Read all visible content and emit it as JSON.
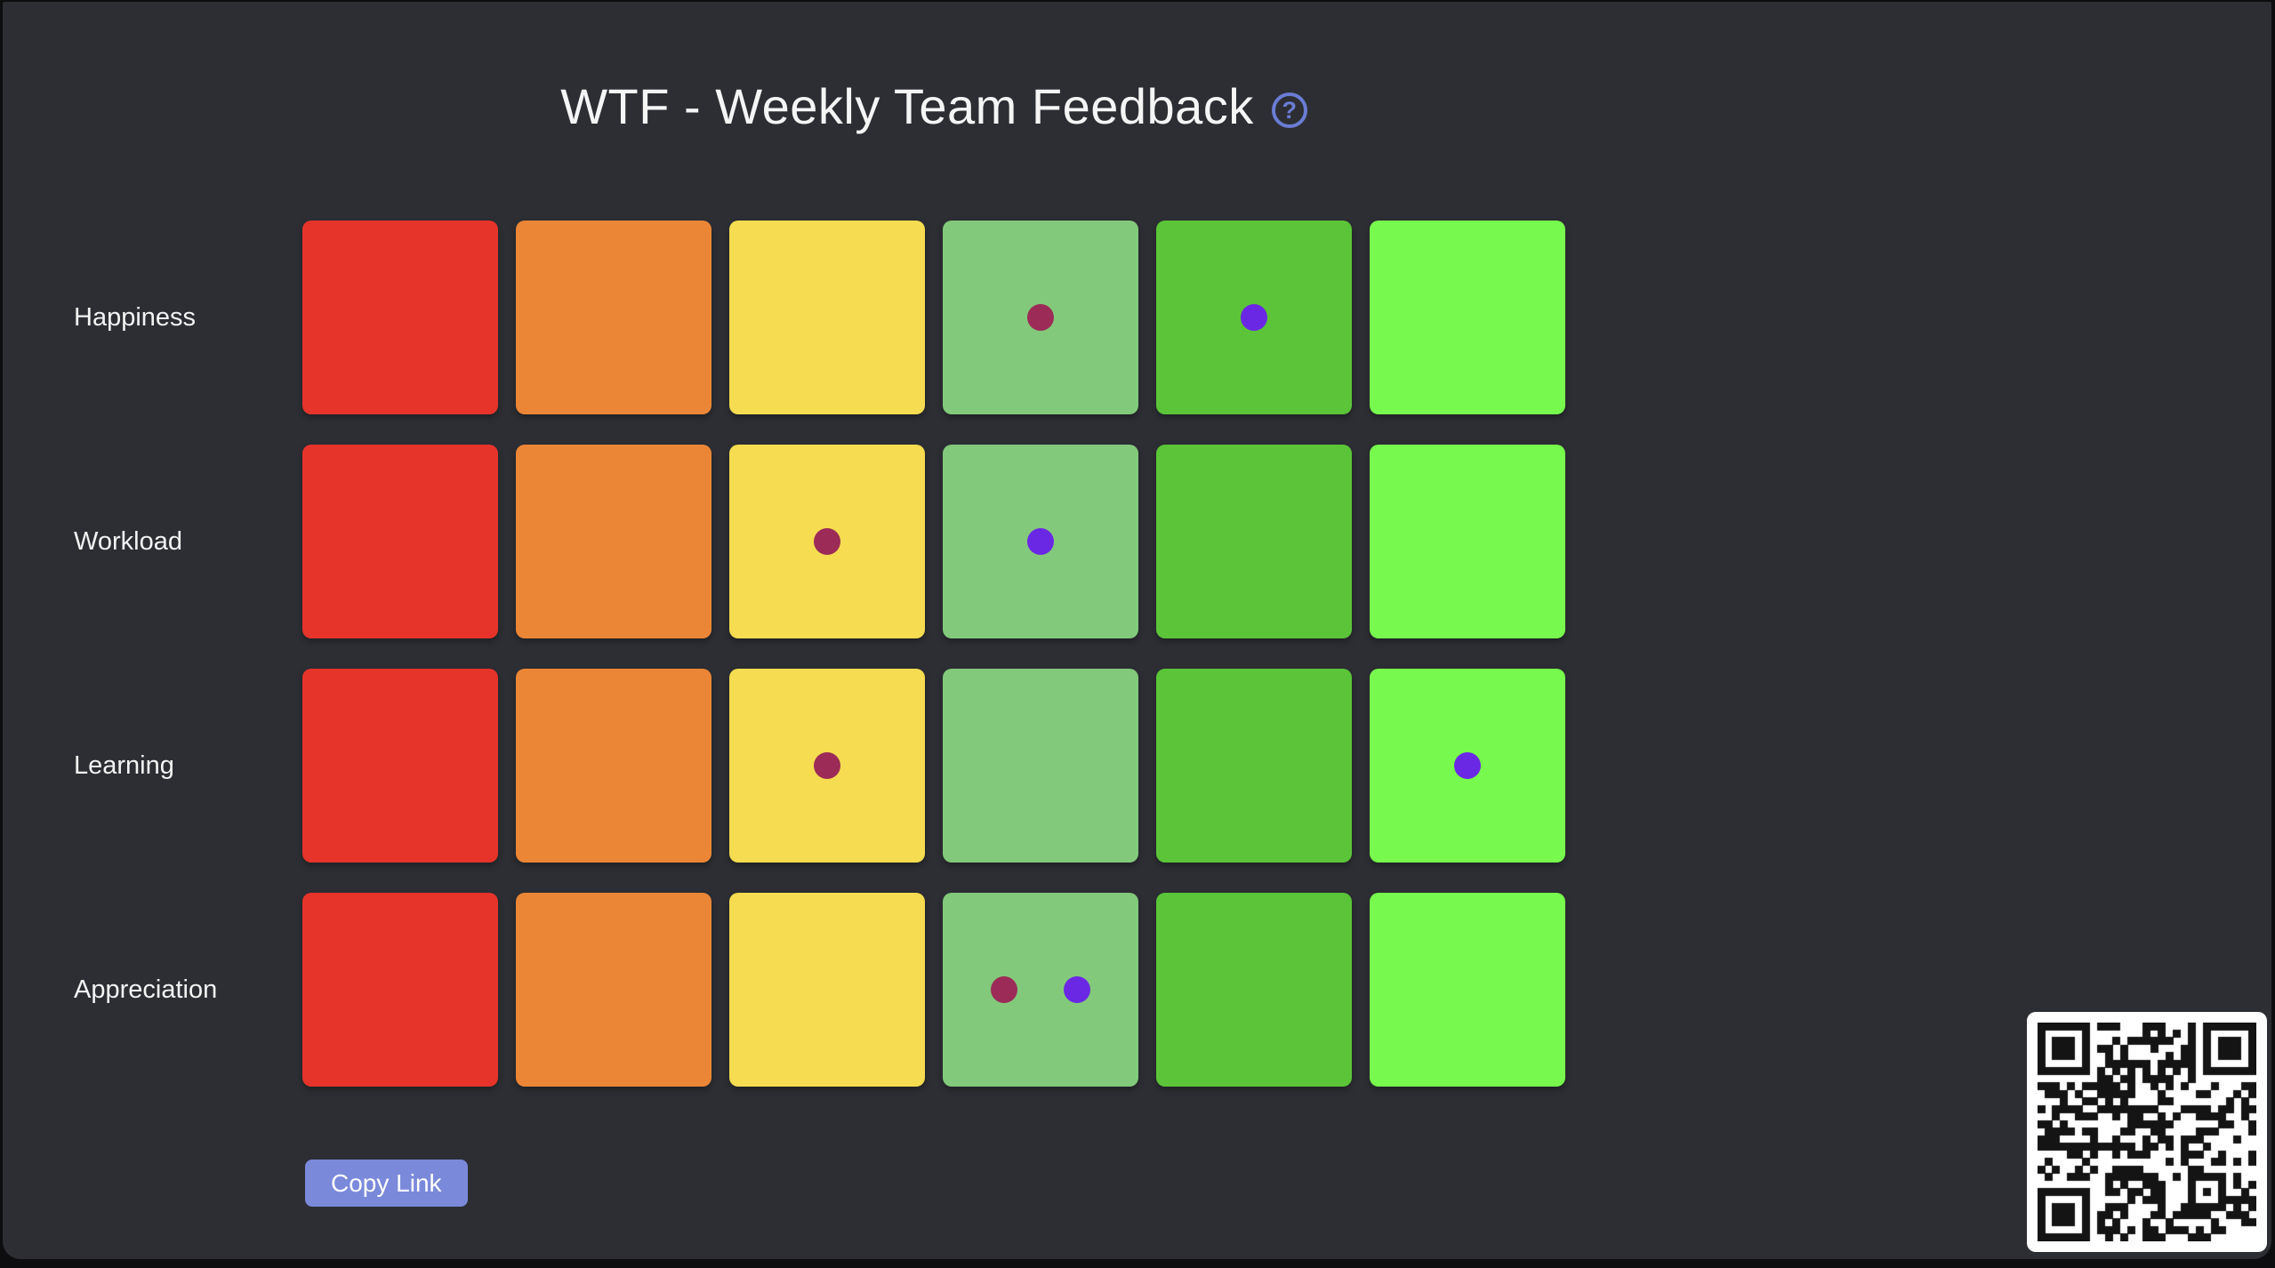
{
  "page": {
    "title": "WTF - Weekly Team Feedback",
    "help_glyph": "?"
  },
  "colors": {
    "panel_background": "#2c2e33",
    "outer_background": "#0d0d0f",
    "accent": "#7a89da",
    "help_icon": "#6b7cd4",
    "vote_maroon": "#9c2b58",
    "vote_purple": "#6b28e4",
    "scale": [
      "#e6342b",
      "#eb8636",
      "#f5dc50",
      "#83c97b",
      "#5bc438",
      "#77f94d"
    ]
  },
  "board": {
    "columns": 6,
    "rows": [
      {
        "label": "Happiness",
        "votes": [
          {
            "col": 3,
            "color": "maroon"
          },
          {
            "col": 4,
            "color": "purple"
          }
        ]
      },
      {
        "label": "Workload",
        "votes": [
          {
            "col": 2,
            "color": "maroon"
          },
          {
            "col": 3,
            "color": "purple"
          }
        ]
      },
      {
        "label": "Learning",
        "votes": [
          {
            "col": 2,
            "color": "maroon"
          },
          {
            "col": 5,
            "color": "purple"
          }
        ]
      },
      {
        "label": "Appreciation",
        "votes": [
          {
            "col": 3,
            "color": "maroon"
          },
          {
            "col": 3,
            "color": "purple"
          }
        ]
      }
    ]
  },
  "actions": {
    "copy_link_label": "Copy Link"
  },
  "qr": {
    "modules": 29
  }
}
